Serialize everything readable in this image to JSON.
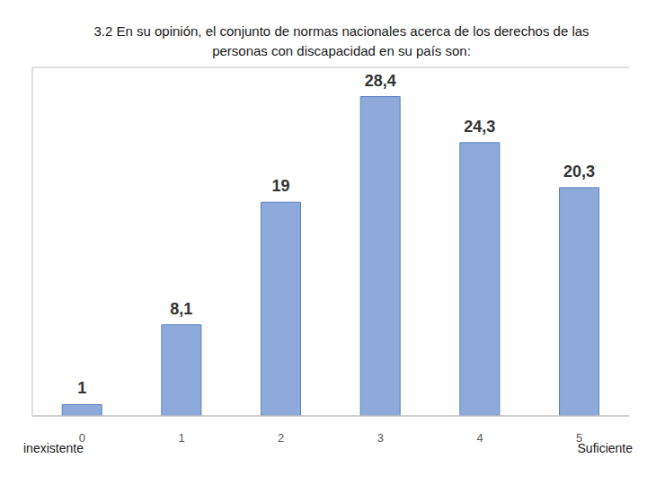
{
  "chart_data": {
    "type": "bar",
    "title": "3.2 En su opinión, el conjunto de normas nacionales acerca de los derechos de las personas con discapacidad en su país son:",
    "categories": [
      "0",
      "1",
      "2",
      "3",
      "4",
      "5"
    ],
    "values": [
      1,
      8.1,
      19,
      28.4,
      24.3,
      20.3
    ],
    "value_labels": [
      "1",
      "8,1",
      "19",
      "28,4",
      "24,3",
      "20,3"
    ],
    "color": "#8eaadb",
    "ylim": [
      0,
      31
    ],
    "data_labels": true,
    "tick_labels": "x",
    "annotations": [
      "inexistente",
      "Suficiente"
    ]
  }
}
